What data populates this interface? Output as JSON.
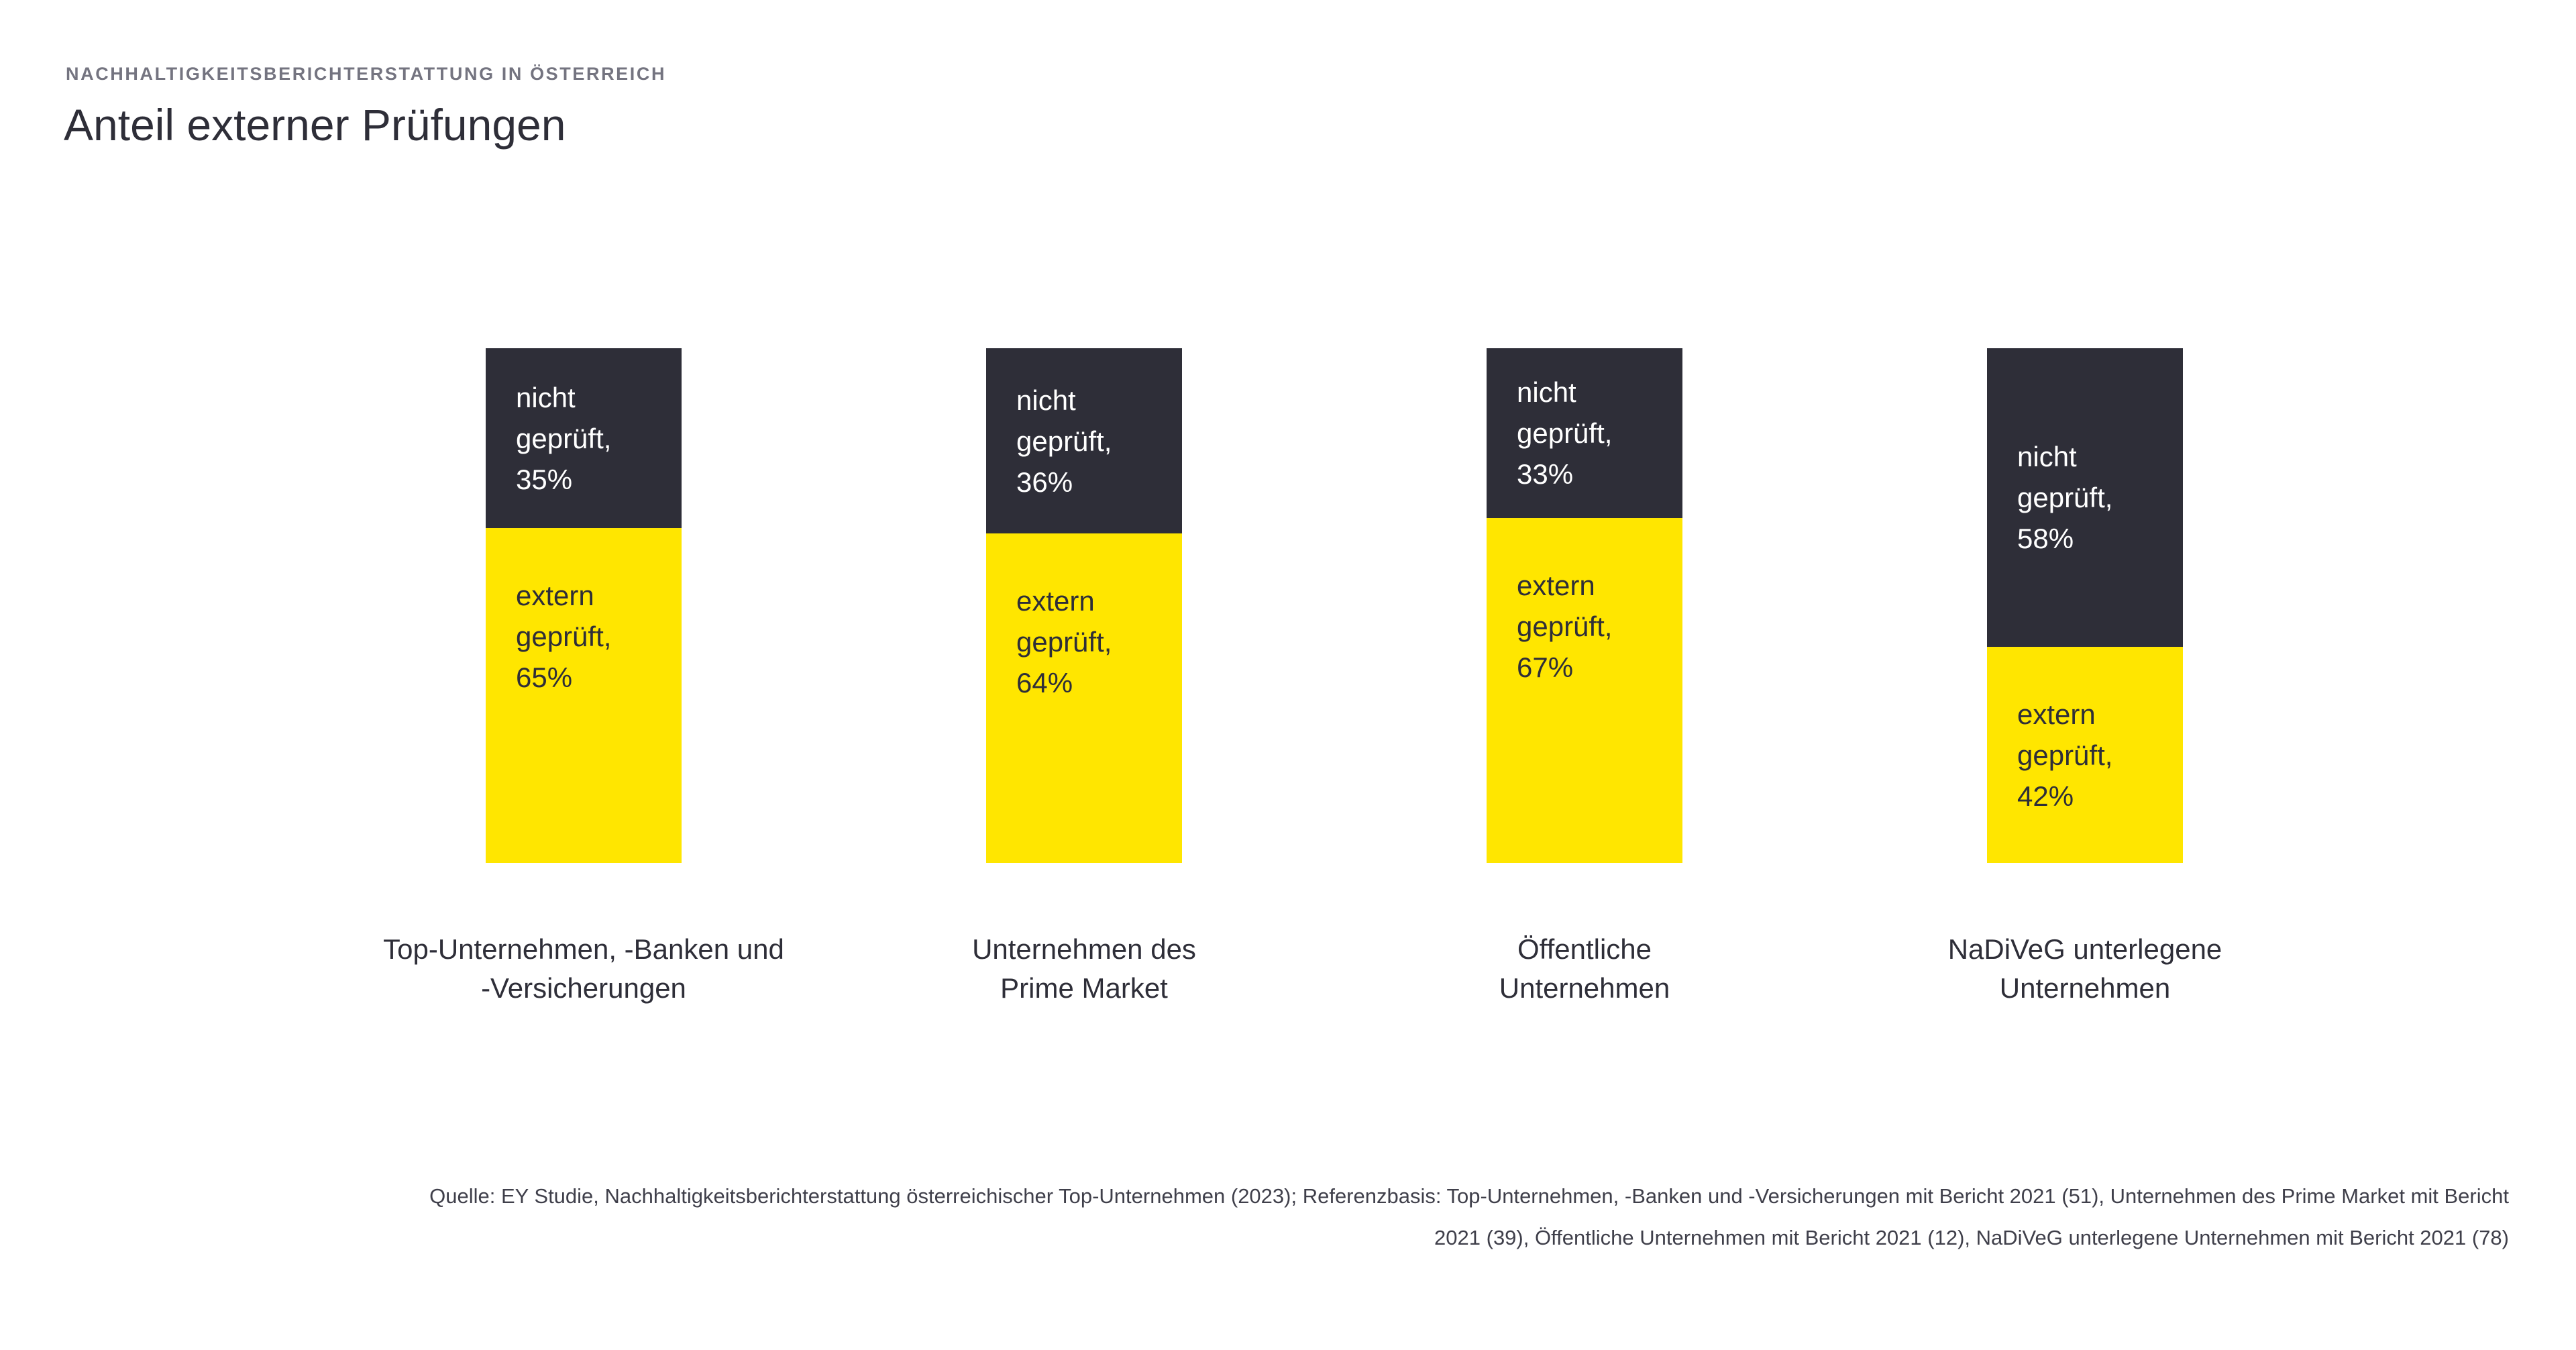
{
  "header": {
    "eyebrow": "NACHHALTIGKEITSBERICHTERSTATTUNG IN ÖSTERREICH",
    "title": "Anteil externer Prüfungen"
  },
  "colors": {
    "dark": "#2e2e38",
    "yellow": "#ffe600",
    "eyebrow_gray": "#747480",
    "text": "#2e2e38",
    "footer_text": "#3f3f4a",
    "background": "#ffffff"
  },
  "chart_data": {
    "type": "bar",
    "stacked": true,
    "orientation": "vertical",
    "title": "Anteil externer Prüfungen",
    "xlabel": "",
    "ylabel": "",
    "value_unit": "%",
    "ylim": [
      0,
      100
    ],
    "grid": false,
    "legend": "none (labels inside segments)",
    "categories": [
      "Top-Unternehmen, -Banken und -Versicherungen",
      "Unternehmen des Prime Market",
      "Öffentliche Unternehmen",
      "NaDiVeG unterlegene Unternehmen"
    ],
    "series": [
      {
        "name": "nicht geprüft",
        "color": "#2e2e38",
        "values": [
          35,
          36,
          33,
          58
        ]
      },
      {
        "name": "extern geprüft",
        "color": "#ffe600",
        "values": [
          65,
          64,
          67,
          42
        ]
      }
    ]
  },
  "bars": [
    {
      "nicht_label": "nicht\ngeprüft,\n35%",
      "extern_label": "extern\ngeprüft,\n65%",
      "category": "Top-Unternehmen, -Banken und\n-Versicherungen"
    },
    {
      "nicht_label": "nicht\ngeprüft,\n36%",
      "extern_label": "extern\ngeprüft,\n64%",
      "category": "Unternehmen des\nPrime Market"
    },
    {
      "nicht_label": "nicht\ngeprüft,\n33%",
      "extern_label": "extern\ngeprüft,\n67%",
      "category": "Öffentliche\nUnternehmen"
    },
    {
      "nicht_label": "nicht\ngeprüft,\n58%",
      "extern_label": "extern\ngeprüft,\n42%",
      "category": "NaDiVeG unterlegene\nUnternehmen"
    }
  ],
  "footer": {
    "source": "Quelle: EY Studie, Nachhaltigkeitsberichterstattung österreichischer Top-Unternehmen (2023); Referenzbasis: Top-Unternehmen, -Banken und -Versicherungen mit Bericht 2021 (51), Unternehmen des Prime Market mit Bericht\n2021 (39), Öffentliche Unternehmen mit Bericht 2021 (12), NaDiVeG unterlegene Unternehmen mit Bericht 2021 (78)"
  }
}
